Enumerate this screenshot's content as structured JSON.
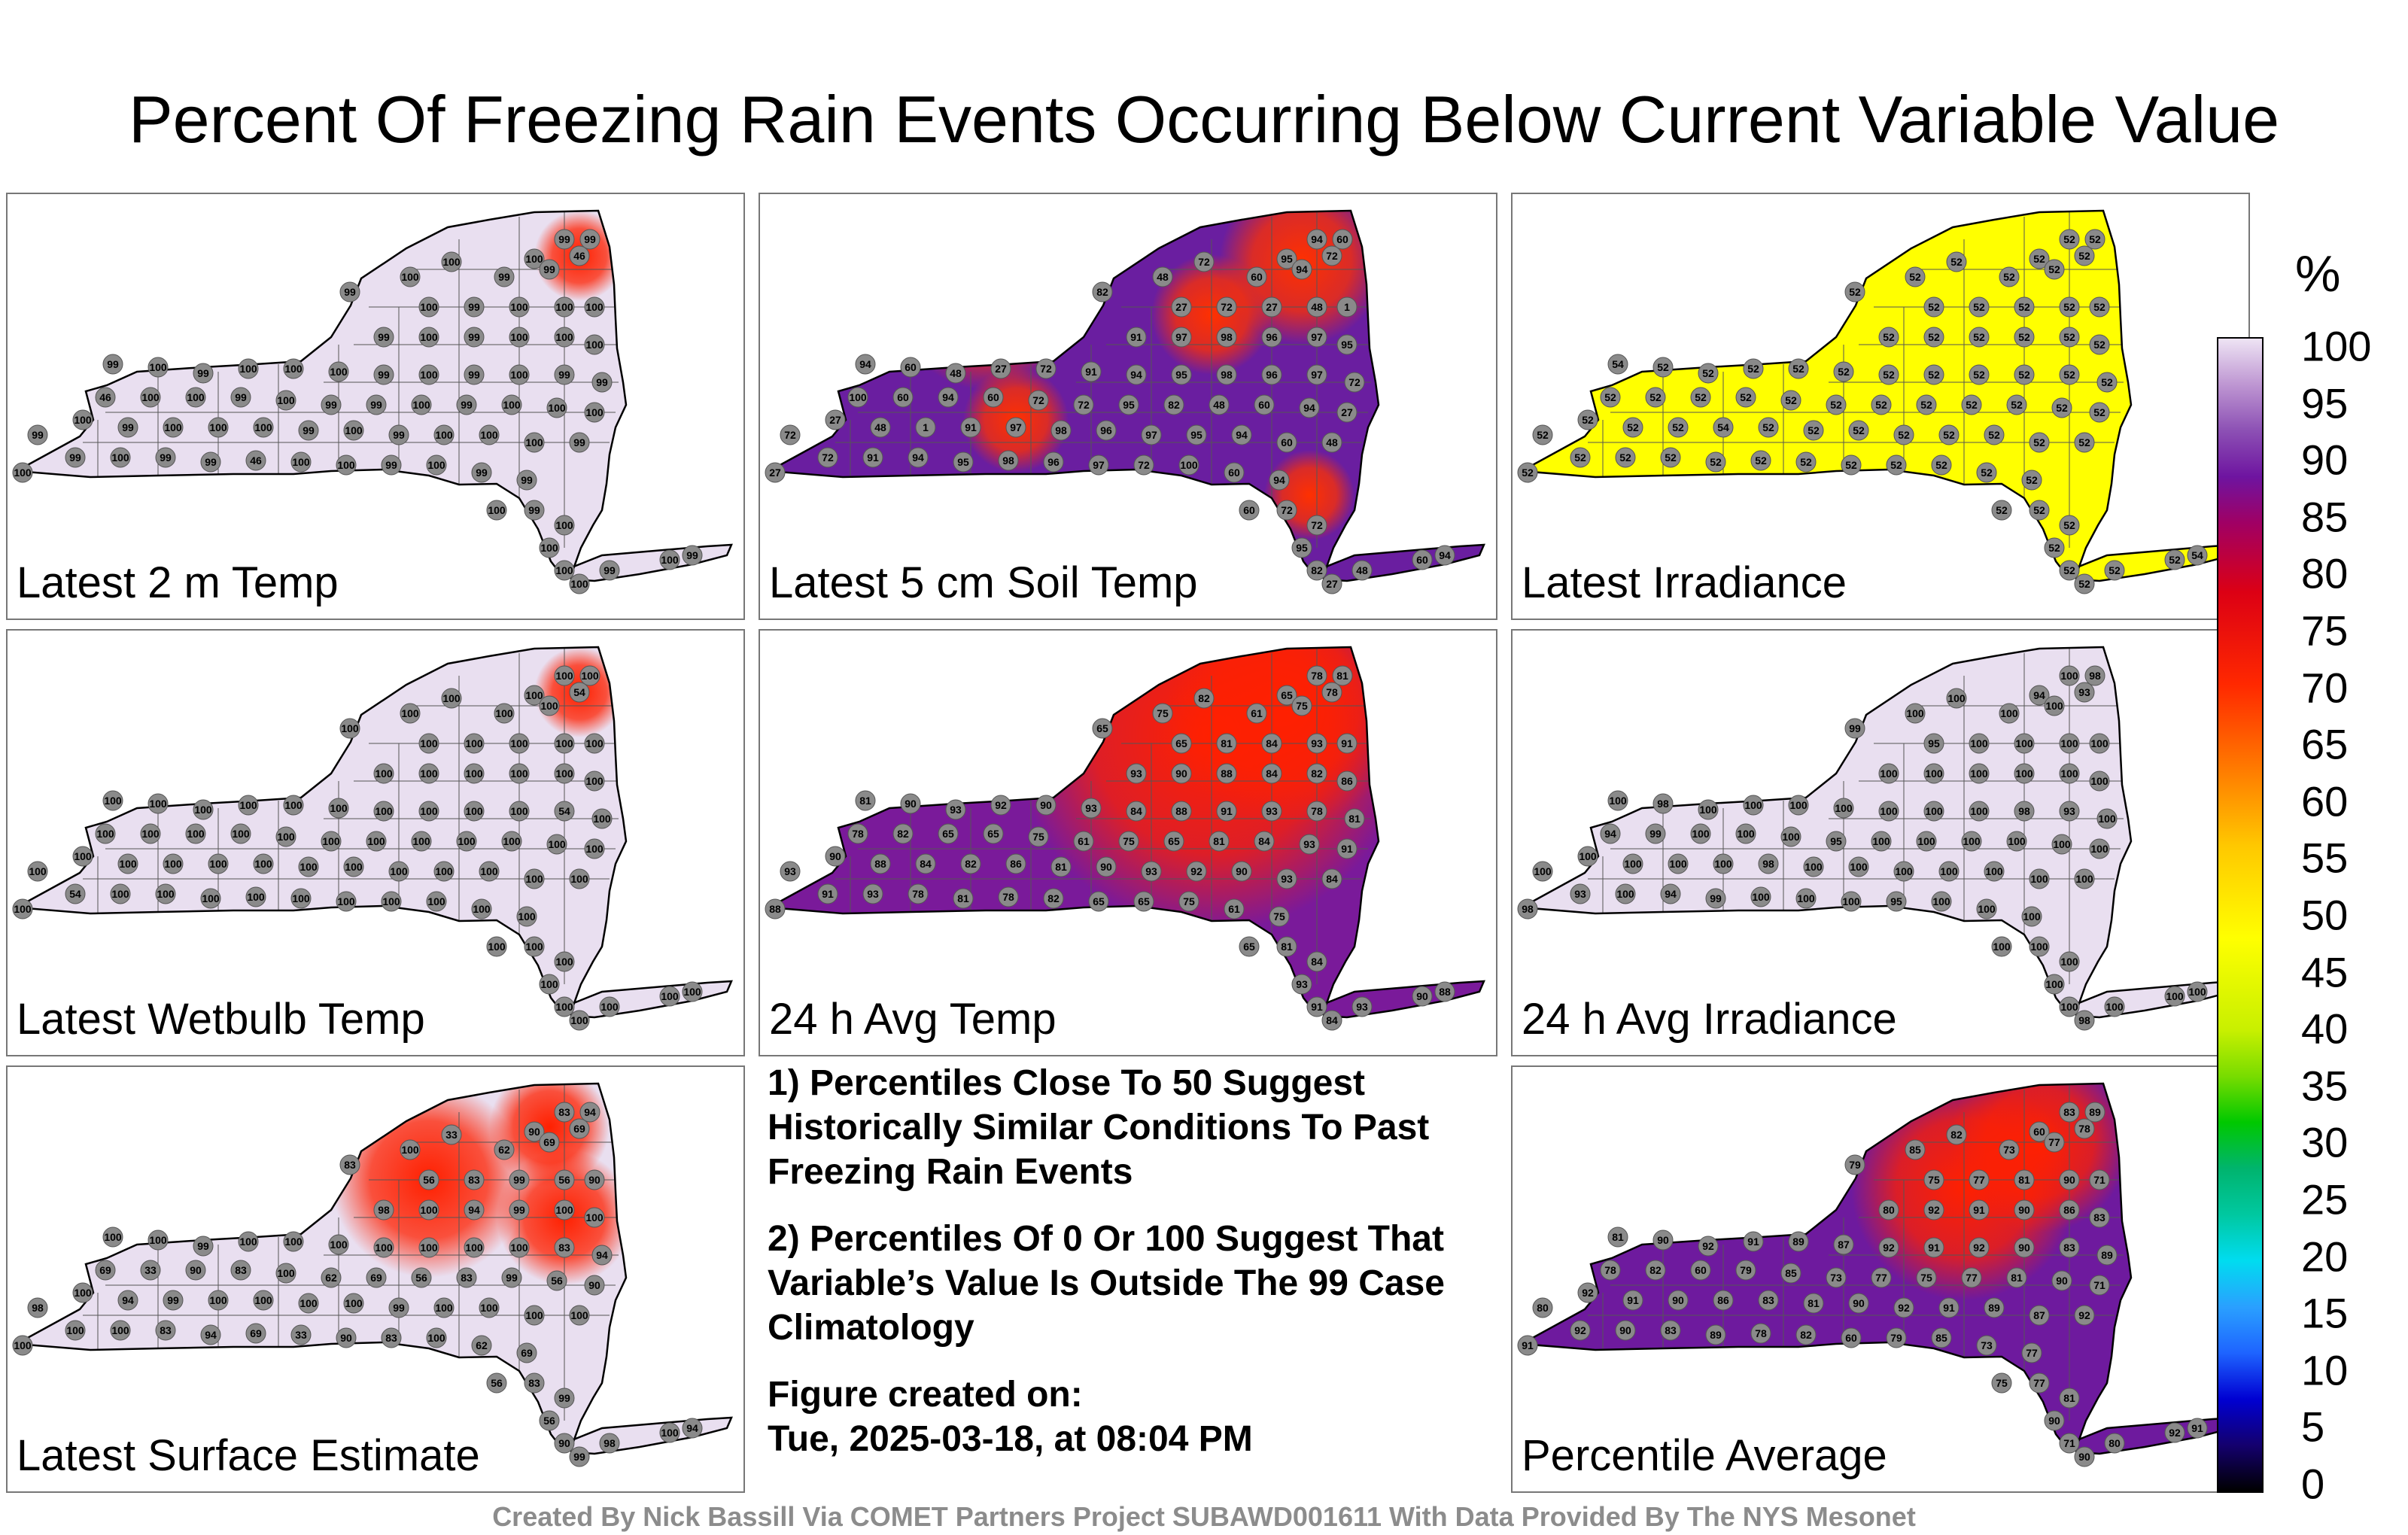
{
  "title": "Percent Of Freezing Rain Events Occurring Below Current Variable Value",
  "panels": [
    {
      "label": "Latest 2 m Temp",
      "fill": "#e9dff0",
      "hotspot_color": "#ff2000",
      "value_labels": [
        "99",
        "99",
        "46",
        "100",
        "100",
        "99",
        "100",
        "99",
        "99",
        "100",
        "99",
        "100",
        "100",
        "100",
        "99",
        "100",
        "99",
        "100",
        "100",
        "100",
        "99",
        "100",
        "99",
        "100",
        "100",
        "100",
        "99",
        "100",
        "99",
        "100"
      ]
    },
    {
      "label": "Latest 5 cm Soil Temp",
      "fill": "#6a1ea0",
      "hotspot_color": "#ff3000",
      "value_labels": [
        "94",
        "60",
        "72",
        "72",
        "95",
        "82",
        "48",
        "60",
        "94",
        "27",
        "72",
        "27",
        "48",
        "1",
        "91",
        "97",
        "98",
        "96",
        "97",
        "95",
        "94",
        "60",
        "48",
        "27",
        "72",
        "91",
        "94",
        "95",
        "98",
        "96",
        "97",
        "72",
        "100",
        "60"
      ]
    },
    {
      "label": "Latest Irradiance",
      "fill": "#ffff00",
      "hotspot_color": "#ffff00",
      "value_labels": [
        "52",
        "52",
        "52",
        "52",
        "52",
        "52",
        "52",
        "52",
        "52",
        "52",
        "52",
        "52",
        "52",
        "52",
        "52",
        "52",
        "52",
        "52",
        "52",
        "52",
        "54",
        "52",
        "52",
        "52",
        "52",
        "52",
        "52",
        "52"
      ]
    },
    {
      "label": "Latest Wetbulb Temp",
      "fill": "#e9dff0",
      "hotspot_color": "#ff2000",
      "value_labels": [
        "100",
        "100",
        "54",
        "100",
        "100",
        "100",
        "100",
        "100",
        "100",
        "100",
        "100",
        "100",
        "100",
        "100",
        "100",
        "100",
        "100",
        "100",
        "100",
        "100",
        "100",
        "100",
        "100",
        "100",
        "100",
        "100",
        "100",
        "100"
      ]
    },
    {
      "label": "24 h Avg Temp",
      "fill": "#7a1a9a",
      "hotspot_color": "#ff2000",
      "value_labels": [
        "78",
        "81",
        "78",
        "82",
        "65",
        "65",
        "75",
        "61",
        "75",
        "65",
        "81",
        "84",
        "93",
        "91",
        "93",
        "90",
        "88",
        "84",
        "82",
        "86",
        "81",
        "90",
        "93",
        "92",
        "90",
        "93",
        "84",
        "88",
        "91",
        "93"
      ]
    },
    {
      "label": "24 h Avg Irradiance",
      "fill": "#e9dff0",
      "hotspot_color": "#d8c8e6",
      "value_labels": [
        "100",
        "98",
        "93",
        "100",
        "94",
        "99",
        "100",
        "100",
        "100",
        "95",
        "100",
        "100",
        "100",
        "100",
        "100",
        "100",
        "100",
        "100",
        "100",
        "100",
        "100",
        "98",
        "100",
        "100",
        "100",
        "100",
        "100",
        "100"
      ]
    },
    {
      "label": "Latest Surface Estimate",
      "fill": "#e9dff0",
      "hotspot_color": "#ff2000",
      "value_labels": [
        "83",
        "94",
        "69",
        "33",
        "90",
        "83",
        "100",
        "62",
        "69",
        "56",
        "83",
        "99",
        "56",
        "90",
        "98",
        "100",
        "94",
        "99",
        "100",
        "100",
        "100",
        "100",
        "99",
        "100",
        "100",
        "100",
        "100",
        "100",
        "100",
        "100"
      ]
    },
    {
      "label": "Percentile Average",
      "fill": "#6e1a9e",
      "hotspot_color": "#ff2000",
      "value_labels": [
        "83",
        "89",
        "78",
        "82",
        "60",
        "79",
        "85",
        "73",
        "77",
        "75",
        "77",
        "81",
        "90",
        "71",
        "80",
        "92",
        "91",
        "90",
        "86",
        "83",
        "81",
        "90",
        "92",
        "91",
        "89",
        "87",
        "92",
        "91",
        "92",
        "90"
      ]
    }
  ],
  "notes": {
    "note1": "1) Percentiles Close To 50 Suggest Historically Similar Conditions To Past Freezing Rain Events",
    "note2": "2) Percentiles Of 0 Or 100 Suggest That Variable’s Value Is Outside The 99 Case Climatology",
    "created_label": "Figure created on:",
    "created_date": "Tue, 2025-03-18, at 08:04 PM"
  },
  "colorbar": {
    "unit": "%",
    "ticks": [
      "0",
      "5",
      "10",
      "15",
      "20",
      "25",
      "30",
      "35",
      "40",
      "45",
      "50",
      "55",
      "60",
      "65",
      "70",
      "75",
      "80",
      "85",
      "90",
      "95",
      "100"
    ],
    "range": [
      0,
      100
    ]
  },
  "footer": "Created By Nick Bassill Via COMET Partners Project SUBAWD001611 With Data Provided By The NYS Mesonet"
}
